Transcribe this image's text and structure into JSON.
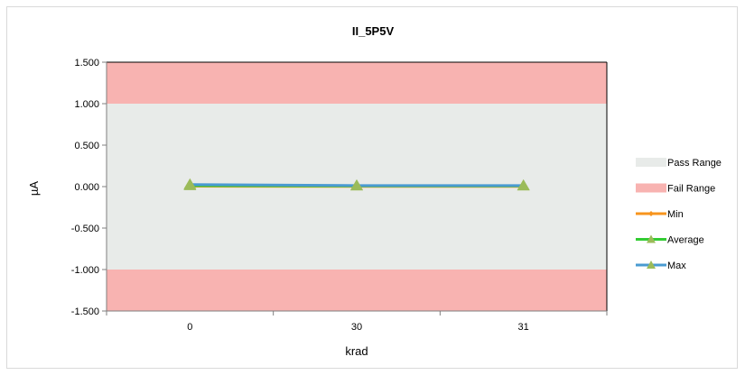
{
  "chart_data": {
    "type": "line",
    "title": "II_5P5V",
    "xlabel": "krad",
    "ylabel": "µA",
    "categories": [
      "0",
      "30",
      "31"
    ],
    "ylim": [
      -1.5,
      1.5
    ],
    "yticks": [
      "1.500",
      "1.000",
      "0.500",
      "0.000",
      "-0.500",
      "-1.000",
      "-1.500"
    ],
    "ytick_values": [
      1.5,
      1.0,
      0.5,
      0.0,
      -0.5,
      -1.0,
      -1.5
    ],
    "pass_range": [
      -1.0,
      1.0
    ],
    "fail_range_upper": [
      1.0,
      1.5
    ],
    "fail_range_lower": [
      -1.5,
      -1.0
    ],
    "series": [
      {
        "name": "Min",
        "values": [
          0.005,
          0.003,
          0.003
        ],
        "color": "#f7941d",
        "marker": "diamond"
      },
      {
        "name": "Average",
        "values": [
          0.012,
          0.008,
          0.008
        ],
        "color": "#33cc33",
        "marker": "triangle"
      },
      {
        "name": "Max",
        "values": [
          0.025,
          0.012,
          0.012
        ],
        "color": "#4a9bd1",
        "marker": "triangle"
      }
    ],
    "legend": {
      "position": "right",
      "entries": [
        "Pass Range",
        "Fail Range",
        "Min",
        "Average",
        "Max"
      ]
    },
    "colors": {
      "pass": "#e8ebe9",
      "fail": "#f8b3b1",
      "marker_fill": "#9bbb59"
    },
    "grid": false
  }
}
